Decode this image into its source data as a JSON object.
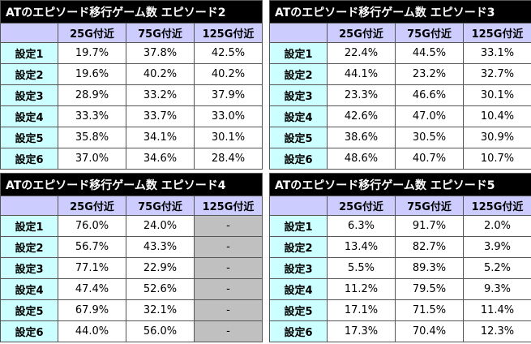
{
  "tables": [
    {
      "title": "ATのエピソード移行ゲーム数 エピソード2",
      "headers": [
        "",
        "25G付近",
        "75G付近",
        "125G付近"
      ],
      "rows": [
        [
          "設定1",
          "19.7%",
          "37.8%",
          "42.5%"
        ],
        [
          "設定2",
          "19.6%",
          "40.2%",
          "40.2%"
        ],
        [
          "設定3",
          "28.9%",
          "33.2%",
          "37.9%"
        ],
        [
          "設定4",
          "33.3%",
          "33.7%",
          "33.0%"
        ],
        [
          "設定5",
          "35.8%",
          "34.1%",
          "30.1%"
        ],
        [
          "設定6",
          "37.0%",
          "34.6%",
          "28.4%"
        ]
      ]
    },
    {
      "title": "ATのエピソード移行ゲーム数 エピソード3",
      "headers": [
        "",
        "25G付近",
        "75G付近",
        "125G付近"
      ],
      "rows": [
        [
          "設定1",
          "22.4%",
          "44.5%",
          "33.1%"
        ],
        [
          "設定2",
          "44.1%",
          "23.2%",
          "32.7%"
        ],
        [
          "設定3",
          "23.3%",
          "46.6%",
          "30.1%"
        ],
        [
          "設定4",
          "42.6%",
          "47.0%",
          "10.4%"
        ],
        [
          "設定5",
          "38.6%",
          "30.5%",
          "30.9%"
        ],
        [
          "設定6",
          "48.6%",
          "40.7%",
          "10.7%"
        ]
      ]
    },
    {
      "title": "ATのエピソード移行ゲーム数 エピソード4",
      "headers": [
        "",
        "25G付近",
        "75G付近",
        "125G付近"
      ],
      "rows": [
        [
          "設定1",
          "76.0%",
          "24.0%",
          "-"
        ],
        [
          "設定2",
          "56.7%",
          "43.3%",
          "-"
        ],
        [
          "設定3",
          "77.1%",
          "22.9%",
          "-"
        ],
        [
          "設定4",
          "47.4%",
          "52.6%",
          "-"
        ],
        [
          "設定5",
          "67.9%",
          "32.1%",
          "-"
        ],
        [
          "設定6",
          "44.0%",
          "56.0%",
          "-"
        ]
      ]
    },
    {
      "title": "ATのエピソード移行ゲーム数 エピソード5",
      "headers": [
        "",
        "25G付近",
        "75G付近",
        "125G付近"
      ],
      "rows": [
        [
          "設定1",
          "6.3%",
          "91.7%",
          "2.0%"
        ],
        [
          "設定2",
          "13.4%",
          "82.7%",
          "3.9%"
        ],
        [
          "設定3",
          "5.5%",
          "89.3%",
          "5.2%"
        ],
        [
          "設定4",
          "11.2%",
          "79.5%",
          "9.3%"
        ],
        [
          "設定5",
          "17.1%",
          "71.5%",
          "11.4%"
        ],
        [
          "設定6",
          "17.3%",
          "70.4%",
          "12.3%"
        ]
      ]
    }
  ],
  "colors": {
    "title_bg": "#000000",
    "header_bg": "#ccccff",
    "setting_bg": "#ccffff",
    "na_bg": "#c0c0c0"
  }
}
